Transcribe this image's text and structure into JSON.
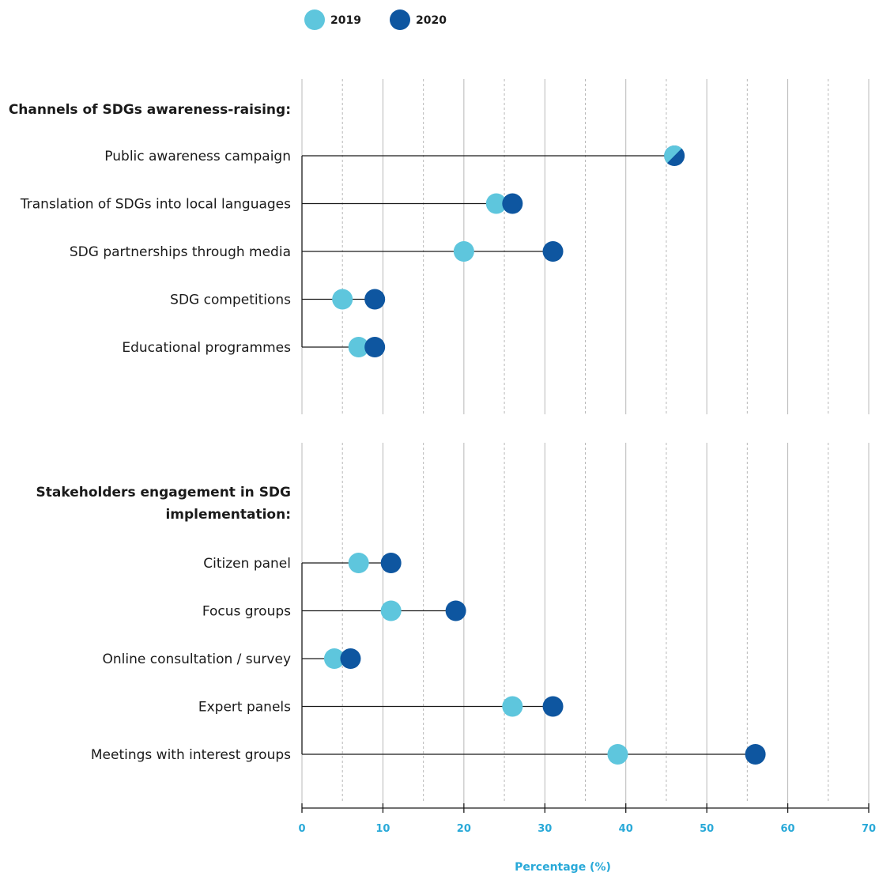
{
  "legend": [
    {
      "label": "2019",
      "color": "#5ec6dd"
    },
    {
      "label": "2020",
      "color": "#0e56a0"
    }
  ],
  "axis": {
    "title": "Percentage (%)",
    "ticks": [
      "0",
      "10",
      "20",
      "30",
      "40",
      "50",
      "60",
      "70"
    ],
    "color": "#29a9d8"
  },
  "chart_data": {
    "type": "dot-plot",
    "xlabel": "Percentage (%)",
    "xlim": [
      0,
      70
    ],
    "major_grid_step": 10,
    "minor_grid_step": 5,
    "series": [
      {
        "name": "2019",
        "color": "#5ec6dd"
      },
      {
        "name": "2020",
        "color": "#0e56a0"
      }
    ],
    "groups": [
      {
        "title": "Channels of SDGs awareness-raising:",
        "title_lines": [
          "Channels of SDGs awareness-raising:"
        ],
        "items": [
          {
            "label": "Public awareness campaign",
            "values": [
              46,
              46
            ]
          },
          {
            "label": "Translation of SDGs into local languages",
            "values": [
              24,
              26
            ]
          },
          {
            "label": "SDG partnerships through media",
            "values": [
              20,
              31
            ]
          },
          {
            "label": "SDG competitions",
            "values": [
              5,
              9
            ]
          },
          {
            "label": "Educational programmes",
            "values": [
              7,
              9
            ]
          }
        ]
      },
      {
        "title": "Stakeholders engagement in SDG implementation:",
        "title_lines": [
          "Stakeholders engagement in SDG",
          "implementation:"
        ],
        "items": [
          {
            "label": "Citizen panel",
            "values": [
              7,
              11
            ]
          },
          {
            "label": "Focus groups",
            "values": [
              11,
              19
            ]
          },
          {
            "label": "Online consultation / survey",
            "values": [
              4,
              6
            ]
          },
          {
            "label": "Expert panels",
            "values": [
              26,
              31
            ]
          },
          {
            "label": "Meetings with interest groups",
            "values": [
              39,
              56
            ]
          }
        ]
      }
    ]
  }
}
